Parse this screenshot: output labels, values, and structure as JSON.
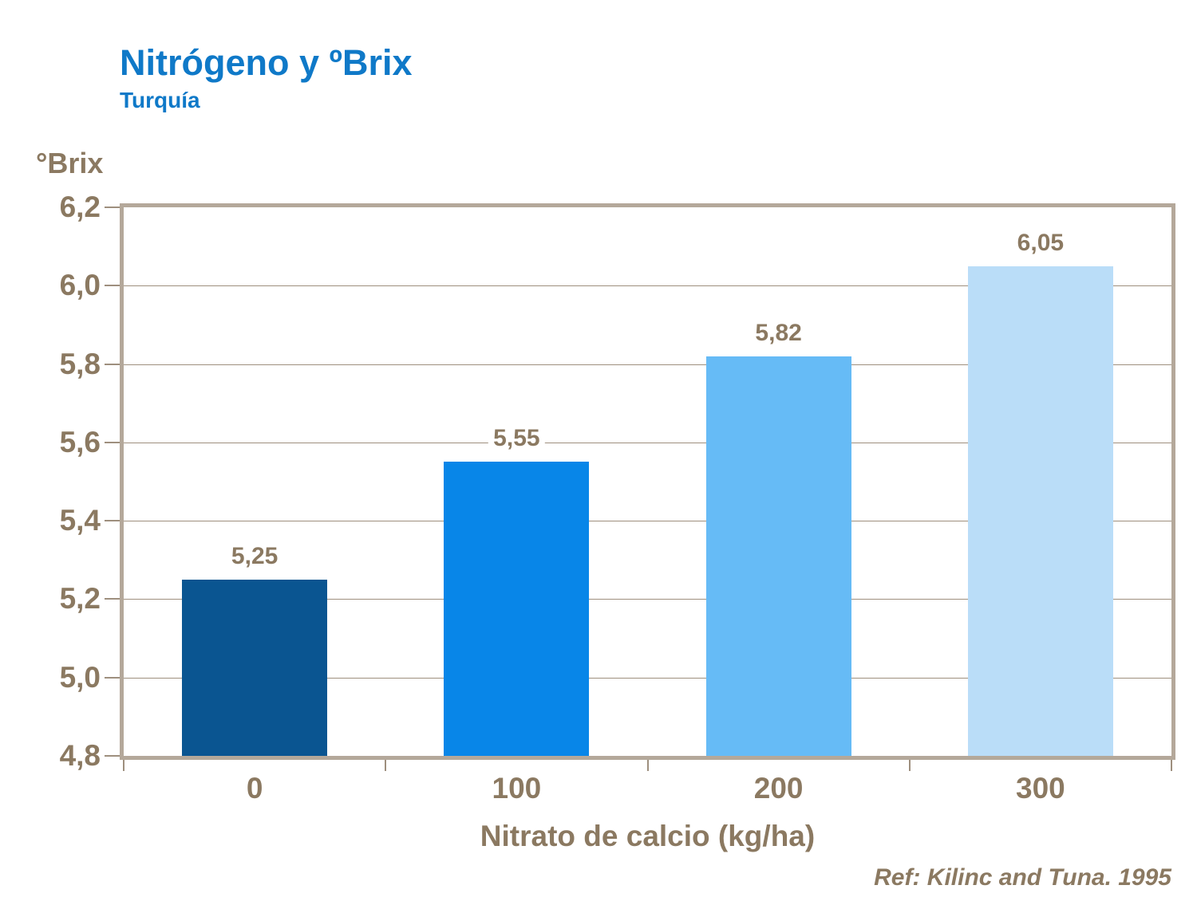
{
  "header": {
    "title": "Nitrógeno y ºBrix",
    "subtitle": "Turquía"
  },
  "chart_data": {
    "type": "bar",
    "title": "Nitrógeno y ºBrix",
    "subtitle": "Turquía",
    "categories": [
      "0",
      "100",
      "200",
      "300"
    ],
    "values": [
      5.25,
      5.55,
      5.82,
      6.05
    ],
    "value_labels": [
      "5,25",
      "5,55",
      "5,82",
      "6,05"
    ],
    "xlabel": "Nitrato de calcio (kg/ha)",
    "ylabel": "°Brix",
    "ylim": [
      4.8,
      6.2
    ],
    "ytick_step": 0.2,
    "ytick_labels": [
      "6,2",
      "6,0",
      "5,8",
      "5,6",
      "5,4",
      "5,2",
      "5,0",
      "4,8"
    ],
    "grid": true,
    "legend": false,
    "bar_colors": [
      "#0A5591",
      "#0886E8",
      "#66BBF6",
      "#BADDF8"
    ],
    "reference": "Ref: Kilinc and Tuna. 1995"
  },
  "colors": {
    "title_blue": "#0F79C8",
    "text_brown": "#8B7961",
    "frame": "#B4A89A",
    "gridline": "#9E8F7E",
    "background": "#FFFFFF"
  }
}
